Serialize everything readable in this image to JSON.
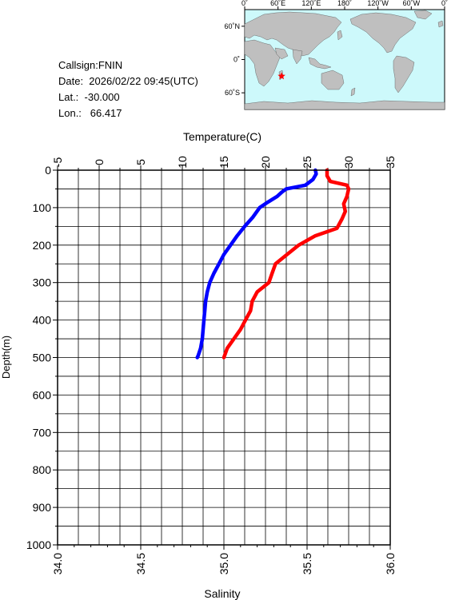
{
  "info": {
    "callsign": "Callsign:FNIN",
    "date": "Date:  2026/02/22 09:45(UTC)",
    "lat": "Lat.:  -30.000",
    "lon": "Lon.:   66.417"
  },
  "map": {
    "lon_ticks": [
      "0˚",
      "60˚E",
      "120˚E",
      "180˚",
      "120˚W",
      "60˚W",
      "0˚"
    ],
    "lat_ticks": [
      "60˚N",
      "0˚",
      "60˚S"
    ],
    "station": {
      "lon": 66.417,
      "lat": -30.0
    },
    "colors": {
      "ocean": "#cdf9fb",
      "land": "#bfbfbf",
      "marker": "#ff0000"
    }
  },
  "chart_data": {
    "type": "line",
    "ylabel": "Depth(m)",
    "y_ticks": [
      "0",
      "100",
      "200",
      "300",
      "400",
      "500",
      "600",
      "700",
      "800",
      "900",
      "1000"
    ],
    "ylim": [
      0,
      1000
    ],
    "y_inverted": true,
    "grid": true,
    "top_axis": {
      "label": "Temperature(C)",
      "ticks": [
        "-5",
        "0",
        "5",
        "10",
        "15",
        "20",
        "25",
        "30",
        "35"
      ],
      "lim": [
        -5,
        35
      ]
    },
    "bottom_axis": {
      "label": "Salinity",
      "ticks": [
        "34.0",
        "34.5",
        "35.0",
        "35.5",
        "36.0"
      ],
      "lim": [
        34.0,
        36.0
      ]
    },
    "series": [
      {
        "variable": "temperature",
        "axis": "top",
        "color": "#0000ff",
        "points": [
          [
            26.0,
            0
          ],
          [
            26.1,
            10
          ],
          [
            25.7,
            25
          ],
          [
            24.8,
            40
          ],
          [
            22.5,
            50
          ],
          [
            22.0,
            58
          ],
          [
            21.4,
            70
          ],
          [
            20.3,
            85
          ],
          [
            19.3,
            100
          ],
          [
            18.5,
            125
          ],
          [
            17.5,
            150
          ],
          [
            16.6,
            175
          ],
          [
            15.8,
            200
          ],
          [
            15.0,
            225
          ],
          [
            14.4,
            250
          ],
          [
            13.8,
            275
          ],
          [
            13.3,
            300
          ],
          [
            13.0,
            325
          ],
          [
            12.8,
            350
          ],
          [
            12.7,
            375
          ],
          [
            12.6,
            400
          ],
          [
            12.5,
            425
          ],
          [
            12.4,
            450
          ],
          [
            12.2,
            475
          ],
          [
            11.9,
            495
          ],
          [
            11.8,
            500
          ]
        ]
      },
      {
        "variable": "salinity",
        "axis": "bottom",
        "color": "#ff0000",
        "points": [
          [
            35.62,
            0
          ],
          [
            35.62,
            15
          ],
          [
            35.64,
            30
          ],
          [
            35.74,
            40
          ],
          [
            35.75,
            50
          ],
          [
            35.74,
            70
          ],
          [
            35.72,
            90
          ],
          [
            35.73,
            110
          ],
          [
            35.71,
            130
          ],
          [
            35.68,
            155
          ],
          [
            35.55,
            175
          ],
          [
            35.45,
            200
          ],
          [
            35.38,
            225
          ],
          [
            35.31,
            250
          ],
          [
            35.29,
            275
          ],
          [
            35.27,
            300
          ],
          [
            35.2,
            325
          ],
          [
            35.17,
            350
          ],
          [
            35.16,
            375
          ],
          [
            35.13,
            400
          ],
          [
            35.1,
            425
          ],
          [
            35.06,
            450
          ],
          [
            35.02,
            475
          ],
          [
            35.0,
            500
          ]
        ]
      }
    ]
  }
}
